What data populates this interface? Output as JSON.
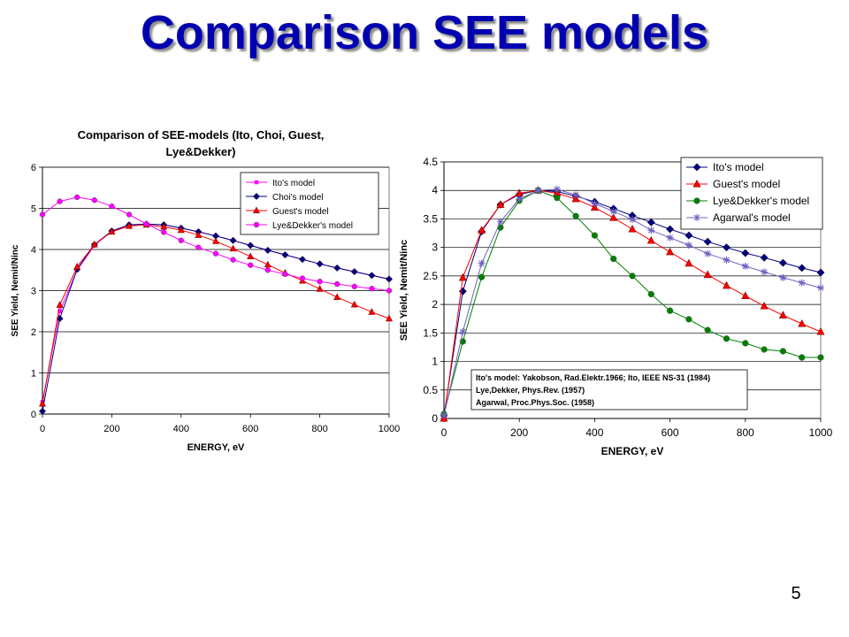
{
  "slide": {
    "title": "Comparison SEE models",
    "page_number": "5"
  },
  "chart_data": [
    {
      "type": "line",
      "title_lines": [
        "Comparison of SEE-models (Ito, Choi, Guest,",
        "Lye&Dekker)"
      ],
      "xlabel": "ENERGY, eV",
      "ylabel": "SEE Yield, Nemit/Ninc",
      "xlim": [
        0,
        1000
      ],
      "ylim": [
        0,
        6
      ],
      "xticks": [
        0,
        200,
        400,
        600,
        800,
        1000
      ],
      "yticks": [
        0,
        1,
        2,
        3,
        4,
        5,
        6
      ],
      "grid": "horizontal",
      "legend_position": "top-right",
      "x": [
        0,
        50,
        100,
        150,
        200,
        250,
        300,
        350,
        400,
        450,
        500,
        550,
        600,
        650,
        700,
        750,
        800,
        850,
        900,
        950,
        1000
      ],
      "series": [
        {
          "name": "Ito's model",
          "color": "#ff00ff",
          "marker": "square",
          "values": [
            0.3,
            2.5,
            3.5,
            4.1,
            4.45,
            4.6,
            4.62,
            4.6,
            4.52,
            4.43,
            4.33,
            4.22,
            4.1,
            3.98,
            3.87,
            3.76,
            3.65,
            3.55,
            3.46,
            3.37,
            3.28
          ]
        },
        {
          "name": "Choi's model",
          "color": "#000080",
          "marker": "diamond",
          "values": [
            0.07,
            2.32,
            3.52,
            4.12,
            4.45,
            4.6,
            4.62,
            4.6,
            4.52,
            4.43,
            4.33,
            4.22,
            4.1,
            3.98,
            3.87,
            3.76,
            3.65,
            3.55,
            3.46,
            3.37,
            3.28
          ]
        },
        {
          "name": "Guest's model",
          "color": "#ff0000",
          "marker": "triangle",
          "values": [
            0.25,
            2.65,
            3.58,
            4.12,
            4.43,
            4.57,
            4.6,
            4.55,
            4.47,
            4.35,
            4.2,
            4.02,
            3.83,
            3.63,
            3.43,
            3.24,
            3.04,
            2.84,
            2.66,
            2.48,
            2.32
          ]
        },
        {
          "name": "Lye&Dekker's model",
          "color": "#ff00ff",
          "marker": "circle",
          "values": [
            4.85,
            5.17,
            5.27,
            5.2,
            5.05,
            4.85,
            4.62,
            4.42,
            4.22,
            4.05,
            3.9,
            3.75,
            3.62,
            3.5,
            3.4,
            3.3,
            3.22,
            3.16,
            3.1,
            3.05,
            3.0
          ]
        }
      ]
    },
    {
      "type": "line",
      "xlabel": "ENERGY, eV",
      "ylabel": "SEE Yield, Nemit/Ninc",
      "xlim": [
        0,
        1000
      ],
      "ylim": [
        0,
        4.5
      ],
      "xticks": [
        0,
        200,
        400,
        600,
        800,
        1000
      ],
      "yticks": [
        0,
        0.5,
        1,
        1.5,
        2,
        2.5,
        3,
        3.5,
        4,
        4.5
      ],
      "grid": "horizontal",
      "legend_position": "top-right",
      "annotation": [
        "Ito's model: Yakobson, Rad.Elektr.1966; Ito, IEEE NS-31 (1984)",
        "Lye,Dekker, Phys.Rev. (1957)",
        "Agarwal, Proc.Phys.Soc. (1958)"
      ],
      "x": [
        0,
        50,
        100,
        150,
        200,
        250,
        300,
        350,
        400,
        450,
        500,
        550,
        600,
        650,
        700,
        750,
        800,
        850,
        900,
        950,
        1000
      ],
      "series": [
        {
          "name": "Ito's model",
          "color": "#000080",
          "marker": "diamond",
          "values": [
            0.05,
            2.23,
            3.28,
            3.75,
            3.93,
            4.0,
            3.98,
            3.9,
            3.8,
            3.68,
            3.56,
            3.44,
            3.32,
            3.21,
            3.1,
            3.0,
            2.9,
            2.82,
            2.73,
            2.64,
            2.56
          ]
        },
        {
          "name": "Guest's model",
          "color": "#ff0000",
          "marker": "triangle",
          "values": [
            0.0,
            2.47,
            3.3,
            3.75,
            3.95,
            4.0,
            3.95,
            3.85,
            3.7,
            3.52,
            3.32,
            3.12,
            2.92,
            2.72,
            2.52,
            2.33,
            2.15,
            1.97,
            1.81,
            1.66,
            1.52
          ]
        },
        {
          "name": "Lye&Dekker's model",
          "color": "#008000",
          "marker": "circle",
          "values": [
            0.08,
            1.35,
            2.48,
            3.35,
            3.82,
            4.0,
            3.87,
            3.55,
            3.21,
            2.8,
            2.5,
            2.18,
            1.89,
            1.74,
            1.55,
            1.4,
            1.32,
            1.21,
            1.18,
            1.07,
            1.07
          ]
        },
        {
          "name": "Agarwal's model",
          "color": "#7060c0",
          "marker": "star",
          "values": [
            0.05,
            1.52,
            2.72,
            3.45,
            3.85,
            4.0,
            4.02,
            3.92,
            3.77,
            3.63,
            3.49,
            3.3,
            3.17,
            3.04,
            2.89,
            2.78,
            2.67,
            2.57,
            2.47,
            2.38,
            2.29
          ]
        }
      ]
    }
  ]
}
